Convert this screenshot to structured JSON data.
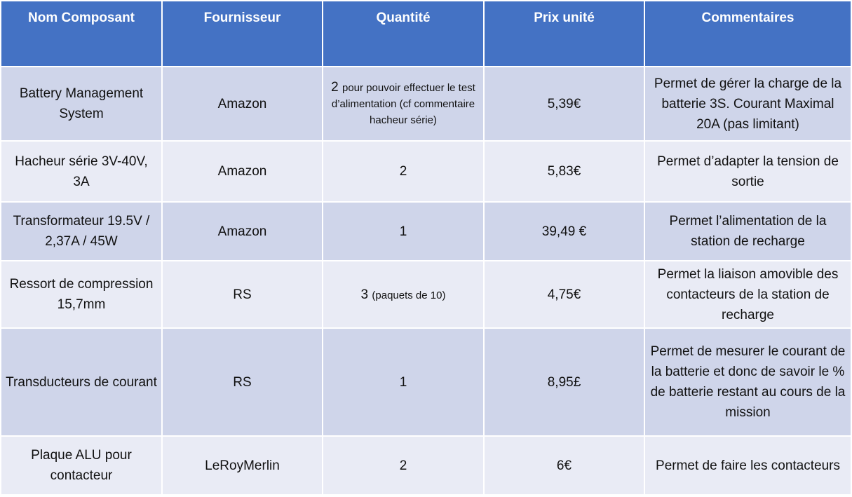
{
  "table": {
    "headers": [
      "Nom Composant",
      "Fournisseur",
      "Quantité",
      "Prix unité",
      "Commentaires"
    ],
    "rows": [
      {
        "name": "Battery Management System",
        "supplier": "Amazon",
        "qty": "2",
        "qty_note": "pour pouvoir effectuer le test d’alimentation (cf commentaire hacheur série)",
        "price": "5,39€",
        "comment": "Permet de gérer la charge de la batterie 3S. Courant Maximal 20A (pas limitant)"
      },
      {
        "name": "Hacheur série 3V-40V, 3A",
        "supplier": "Amazon",
        "qty": "2",
        "qty_note": "",
        "price": "5,83€",
        "comment": "Permet d’adapter la tension de sortie"
      },
      {
        "name": "Transformateur 19.5V / 2,37A / 45W",
        "supplier": "Amazon",
        "qty": "1",
        "qty_note": "",
        "price": "39,49 €",
        "comment": "Permet l’alimentation de la station de recharge"
      },
      {
        "name": "Ressort de compression 15,7mm",
        "supplier": "RS",
        "qty": "3",
        "qty_note": "(paquets de 10)",
        "price": "4,75€",
        "comment": "Permet la liaison amovible des contacteurs de la station de recharge"
      },
      {
        "name": "Transducteurs de courant",
        "supplier": "RS",
        "qty": "1",
        "qty_note": "",
        "price": "8,95£",
        "comment": "Permet de mesurer le courant de la batterie et donc de savoir le % de batterie restant au cours de la mission"
      },
      {
        "name": "Plaque ALU pour contacteur",
        "supplier": "LeRoyMerlin",
        "qty": "2",
        "qty_note": "",
        "price": "6€",
        "comment": "Permet de faire les contacteurs"
      }
    ]
  },
  "colors": {
    "header_bg": "#4472c4",
    "row_dark": "#cfd5ea",
    "row_light": "#e9ebf5"
  }
}
